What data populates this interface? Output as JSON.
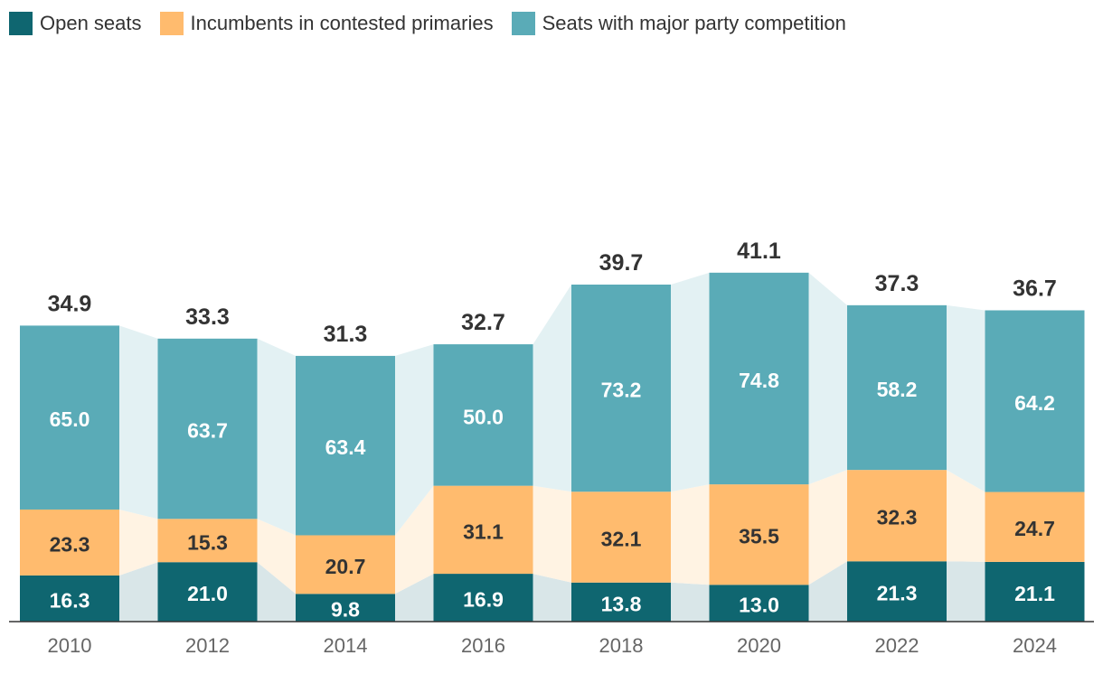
{
  "chart_data": {
    "type": "bar",
    "stacked": true,
    "categories": [
      "2010",
      "2012",
      "2014",
      "2016",
      "2018",
      "2020",
      "2022",
      "2024"
    ],
    "series": [
      {
        "name": "Open seats",
        "values": [
          "16.3",
          "21.0",
          "9.8",
          "16.9",
          "13.8",
          "13.0",
          "21.3",
          "21.1"
        ],
        "color": "#0f6670",
        "label_color": "#ffffff"
      },
      {
        "name": "Incumbents in contested primaries",
        "values": [
          "23.3",
          "15.3",
          "20.7",
          "31.1",
          "32.1",
          "35.5",
          "32.3",
          "24.7"
        ],
        "color": "#ffbb6e",
        "label_color": "#333333"
      },
      {
        "name": "Seats with major party competition",
        "values": [
          "65.0",
          "63.7",
          "63.4",
          "50.0",
          "73.2",
          "74.8",
          "58.2",
          "64.2"
        ],
        "color": "#5aabb7",
        "label_color": "#ffffff"
      }
    ],
    "totals": [
      "34.9",
      "33.3",
      "31.3",
      "32.7",
      "39.7",
      "41.1",
      "37.3",
      "36.7"
    ],
    "band_colors": [
      "#d9e6e8",
      "#fff3e3",
      "#e3f1f3"
    ],
    "legend_position": "top-left",
    "xlabel": "",
    "ylabel": "",
    "ylim": [
      0,
      125
    ],
    "grid": false
  }
}
